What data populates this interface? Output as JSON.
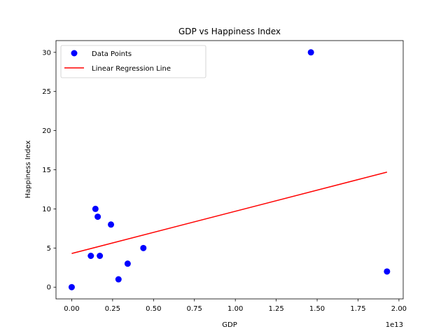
{
  "chart_data": {
    "type": "scatter",
    "title": "GDP vs Happiness Index",
    "xlabel": "GDP",
    "ylabel": "Happiness Index",
    "x_offset_label": "1e13",
    "xlim": [
      -0.096,
      2.026
    ],
    "ylim": [
      -1.5,
      31.5
    ],
    "x_ticks": [
      0.0,
      0.25,
      0.5,
      0.75,
      1.0,
      1.25,
      1.5,
      1.75,
      2.0
    ],
    "x_tick_labels": [
      "0.00",
      "0.25",
      "0.50",
      "0.75",
      "1.00",
      "1.25",
      "1.50",
      "1.75",
      "2.00"
    ],
    "y_ticks": [
      0,
      5,
      10,
      15,
      20,
      25,
      30
    ],
    "y_tick_labels": [
      "0",
      "5",
      "10",
      "15",
      "20",
      "25",
      "30"
    ],
    "grid": false,
    "legend_position": "top-left",
    "series": [
      {
        "name": "Data Points",
        "kind": "scatter",
        "color": "#0000ff",
        "points": [
          {
            "x": 0.0,
            "y": 0
          },
          {
            "x": 0.117,
            "y": 4
          },
          {
            "x": 0.145,
            "y": 10
          },
          {
            "x": 0.159,
            "y": 9
          },
          {
            "x": 0.172,
            "y": 4
          },
          {
            "x": 0.24,
            "y": 8
          },
          {
            "x": 0.286,
            "y": 1
          },
          {
            "x": 0.342,
            "y": 3
          },
          {
            "x": 0.438,
            "y": 5
          },
          {
            "x": 1.462,
            "y": 30
          },
          {
            "x": 1.927,
            "y": 2
          }
        ]
      },
      {
        "name": "Linear Regression Line",
        "kind": "line",
        "color": "#ff0000",
        "points": [
          {
            "x": 0.0,
            "y": 4.3
          },
          {
            "x": 1.927,
            "y": 14.7
          }
        ]
      }
    ]
  }
}
